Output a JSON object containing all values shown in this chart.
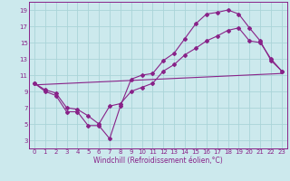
{
  "xlabel": "Windchill (Refroidissement éolien,°C)",
  "ylabel": "",
  "bg_color": "#cce9ed",
  "line_color": "#882288",
  "grid_color": "#aad4d8",
  "xlim": [
    -0.5,
    23.5
  ],
  "ylim": [
    2,
    20
  ],
  "xticks": [
    0,
    1,
    2,
    3,
    4,
    5,
    6,
    7,
    8,
    9,
    10,
    11,
    12,
    13,
    14,
    15,
    16,
    17,
    18,
    19,
    20,
    21,
    22,
    23
  ],
  "yticks": [
    3,
    5,
    7,
    9,
    11,
    13,
    15,
    17,
    19
  ],
  "line1_x": [
    0,
    1,
    2,
    3,
    4,
    5,
    6,
    7,
    8,
    9,
    10,
    11,
    12,
    13,
    14,
    15,
    16,
    17,
    18,
    19,
    20,
    21,
    22,
    23
  ],
  "line1_y": [
    10.0,
    9.0,
    8.5,
    6.5,
    6.5,
    4.8,
    4.8,
    3.2,
    7.2,
    10.5,
    11.0,
    11.2,
    12.8,
    13.7,
    15.5,
    17.3,
    18.5,
    18.7,
    19.0,
    18.5,
    16.8,
    15.2,
    12.8,
    11.5
  ],
  "line2_x": [
    0,
    1,
    2,
    3,
    4,
    5,
    6,
    7,
    8,
    9,
    10,
    11,
    12,
    13,
    14,
    15,
    16,
    17,
    18,
    19,
    20,
    21,
    22,
    23
  ],
  "line2_y": [
    10.0,
    9.2,
    8.8,
    7.0,
    6.8,
    6.0,
    5.0,
    7.2,
    7.5,
    9.0,
    9.5,
    10.0,
    11.5,
    12.3,
    13.5,
    14.3,
    15.2,
    15.8,
    16.5,
    16.8,
    15.2,
    15.0,
    13.0,
    11.5
  ],
  "line3_x": [
    0,
    23
  ],
  "line3_y": [
    9.8,
    11.2
  ],
  "tick_fontsize": 5.0,
  "xlabel_fontsize": 5.5,
  "figwidth": 3.2,
  "figheight": 2.0,
  "dpi": 100
}
